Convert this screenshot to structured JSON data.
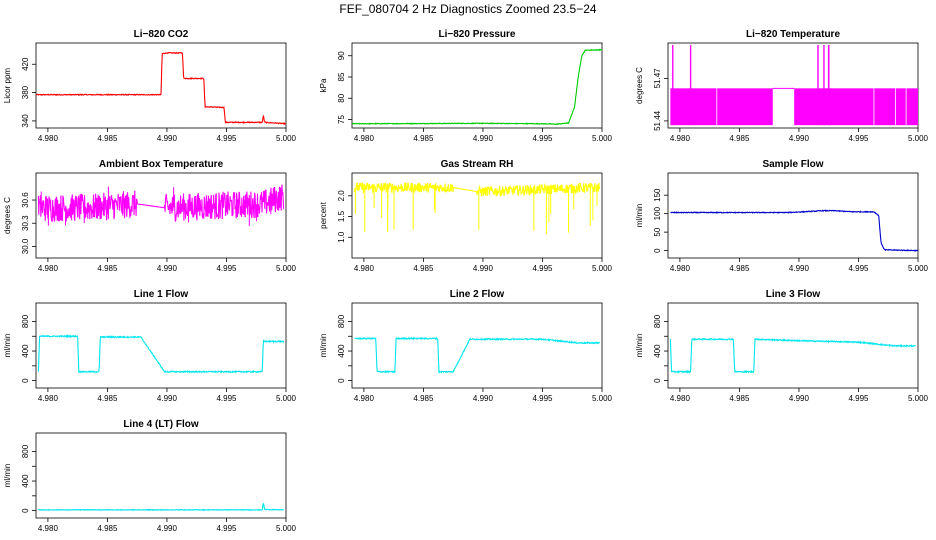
{
  "figure_title": "FEF_080704  2 Hz Diagnostics Zoomed 23.5−24",
  "chart_data": [
    {
      "type": "line",
      "title": "Li−820 CO2",
      "xlabel": "",
      "ylabel": "Licor ppm",
      "color": "#ff0000",
      "xlim": [
        4.979,
        5.0
      ],
      "ylim": [
        330,
        450
      ],
      "yticks": [
        340,
        380,
        420
      ],
      "ytick_labels": [
        "340",
        "380",
        "420"
      ],
      "xticks": [
        4.98,
        4.985,
        4.99,
        4.995,
        5.0
      ],
      "xtick_labels": [
        "4.980",
        "4.985",
        "4.990",
        "4.995",
        "5.000"
      ],
      "series": [
        {
          "name": "CO2",
          "x": [
            4.979,
            4.9895,
            4.9896,
            4.99,
            4.9913,
            4.9914,
            4.9931,
            4.9932,
            4.9948,
            4.9949,
            4.998,
            4.9981,
            4.9982,
            5.0
          ],
          "y": [
            377,
            377,
            435,
            436,
            436,
            400,
            400,
            360,
            359,
            338,
            338,
            348,
            338,
            336
          ]
        }
      ]
    },
    {
      "type": "line",
      "title": "Li−820 Pressure",
      "xlabel": "",
      "ylabel": "kPa",
      "color": "#00cc00",
      "xlim": [
        4.979,
        5.0
      ],
      "ylim": [
        73,
        93
      ],
      "yticks": [
        75,
        80,
        85,
        90
      ],
      "ytick_labels": [
        "75",
        "80",
        "85",
        "90"
      ],
      "xticks": [
        4.98,
        4.985,
        4.99,
        4.995,
        5.0
      ],
      "xtick_labels": [
        "4.980",
        "4.985",
        "4.990",
        "4.995",
        "5.000"
      ],
      "series": [
        {
          "name": "Pressure",
          "x": [
            4.979,
            4.99,
            4.995,
            4.9962,
            4.9972,
            4.9977,
            4.998,
            4.9983,
            4.9986,
            5.0
          ],
          "y": [
            74.0,
            74.1,
            74.0,
            73.9,
            74.2,
            78.0,
            85.0,
            90.0,
            91.3,
            91.4
          ]
        }
      ]
    },
    {
      "type": "line",
      "title": "Li−820 Temperature",
      "xlabel": "",
      "ylabel": "degrees C",
      "color": "#ff00ff",
      "xlim": [
        4.979,
        5.0
      ],
      "ylim": [
        51.435,
        51.495
      ],
      "yticks": [
        51.44,
        51.47
      ],
      "ytick_labels": [
        "51.44",
        "51.47"
      ],
      "xticks": [
        4.98,
        4.985,
        4.99,
        4.995,
        5.0
      ],
      "xtick_labels": [
        "4.980",
        "4.985",
        "4.990",
        "4.995",
        "5.000"
      ],
      "series": [
        {
          "name": "Temperature",
          "x": [
            4.979,
            4.988,
            4.9895,
            5.0
          ],
          "y": [
            51.44,
            51.44,
            51.455,
            51.44
          ]
        }
      ]
    },
    {
      "type": "line",
      "title": "Ambient Box Temperature",
      "xlabel": "",
      "ylabel": "degrees C",
      "color": "#ff00ff",
      "xlim": [
        4.979,
        5.0
      ],
      "ylim": [
        29.85,
        30.95
      ],
      "yticks": [
        30.0,
        30.3,
        30.6
      ],
      "ytick_labels": [
        "30.0",
        "30.3",
        "30.6"
      ],
      "xticks": [
        4.98,
        4.985,
        4.99,
        4.995,
        5.0
      ],
      "xtick_labels": [
        "4.980",
        "4.985",
        "4.990",
        "4.995",
        "5.000"
      ],
      "series": [
        {
          "name": "Ambient",
          "x": [
            4.9792,
            4.9835,
            4.9875,
            4.9898,
            4.998,
            4.9998
          ],
          "y": [
            30.5,
            30.5,
            30.55,
            30.5,
            30.55,
            30.65
          ]
        }
      ]
    },
    {
      "type": "line",
      "title": "Gas Stream RH",
      "xlabel": "",
      "ylabel": "percent",
      "color": "#ffff00",
      "xlim": [
        4.979,
        5.0
      ],
      "ylim": [
        0.5,
        2.55
      ],
      "yticks": [
        1.0,
        1.5,
        2.0
      ],
      "ytick_labels": [
        "1.0",
        "1.5",
        "2.0"
      ],
      "xticks": [
        4.98,
        4.985,
        4.99,
        4.995,
        5.0
      ],
      "xtick_labels": [
        "4.980",
        "4.985",
        "4.990",
        "4.995",
        "5.000"
      ],
      "series": [
        {
          "name": "RH",
          "x": [
            4.9792,
            4.9875,
            4.9895,
            4.9998
          ],
          "y": [
            2.2,
            2.2,
            2.1,
            2.2
          ]
        }
      ]
    },
    {
      "type": "line",
      "title": "Sample Flow",
      "xlabel": "",
      "ylabel": "ml/min",
      "color": "#0000cc",
      "xlim": [
        4.979,
        5.0
      ],
      "ylim": [
        -20,
        210
      ],
      "yticks": [
        0,
        50,
        100,
        150
      ],
      "ytick_labels": [
        "0",
        "50",
        "100",
        "150"
      ],
      "xticks": [
        4.98,
        4.985,
        4.99,
        4.995,
        5.0
      ],
      "xtick_labels": [
        "4.980",
        "4.985",
        "4.990",
        "4.995",
        "5.000"
      ],
      "series": [
        {
          "name": "Sample Flow",
          "x": [
            4.9792,
            4.989,
            4.991,
            4.992,
            4.993,
            4.9945,
            4.9963,
            4.9967,
            4.9969,
            4.9972,
            5.0
          ],
          "y": [
            103,
            103,
            106,
            108,
            108,
            105,
            105,
            95,
            20,
            2,
            0
          ]
        }
      ]
    },
    {
      "type": "line",
      "title": "Line 1 Flow",
      "xlabel": "",
      "ylabel": "ml/min",
      "color": "#00e5ee",
      "xlim": [
        4.979,
        5.0
      ],
      "ylim": [
        -100,
        1050
      ],
      "yticks": [
        0,
        200,
        400,
        600,
        800
      ],
      "ytick_labels": [
        "0",
        "400",
        "800"
      ],
      "xticks": [
        4.98,
        4.985,
        4.99,
        4.995,
        5.0
      ],
      "xtick_labels": [
        "4.980",
        "4.985",
        "4.990",
        "4.995",
        "5.000"
      ],
      "series": [
        {
          "name": "Line 1",
          "x": [
            4.9792,
            4.9793,
            4.9825,
            4.9826,
            4.9843,
            4.9844,
            4.9878,
            4.9898,
            4.998,
            4.9981,
            4.9982,
            4.9998
          ],
          "y": [
            120,
            600,
            600,
            120,
            120,
            590,
            590,
            120,
            120,
            550,
            530,
            530
          ]
        }
      ]
    },
    {
      "type": "line",
      "title": "Line 2 Flow",
      "xlabel": "",
      "ylabel": "ml/min",
      "color": "#00e5ee",
      "xlim": [
        4.979,
        5.0
      ],
      "ylim": [
        -100,
        1050
      ],
      "yticks": [
        0,
        200,
        400,
        600,
        800
      ],
      "ytick_labels": [
        "0",
        "400",
        "800"
      ],
      "xticks": [
        4.98,
        4.985,
        4.99,
        4.995,
        5.0
      ],
      "xtick_labels": [
        "4.980",
        "4.985",
        "4.990",
        "4.995",
        "5.000"
      ],
      "series": [
        {
          "name": "Line 2",
          "x": [
            4.9792,
            4.981,
            4.9811,
            4.9826,
            4.9827,
            4.9862,
            4.9863,
            4.9875,
            4.9889,
            4.99,
            4.995,
            4.998,
            4.9998
          ],
          "y": [
            570,
            570,
            120,
            120,
            570,
            570,
            120,
            120,
            560,
            560,
            560,
            510,
            510
          ]
        }
      ]
    },
    {
      "type": "line",
      "title": "Line 3 Flow",
      "xlabel": "",
      "ylabel": "ml/min",
      "color": "#00e5ee",
      "xlim": [
        4.979,
        5.0
      ],
      "ylim": [
        -100,
        1050
      ],
      "yticks": [
        0,
        200,
        400,
        600,
        800
      ],
      "ytick_labels": [
        "0",
        "400",
        "800"
      ],
      "xticks": [
        4.98,
        4.985,
        4.99,
        4.995,
        5.0
      ],
      "xtick_labels": [
        "4.980",
        "4.985",
        "4.990",
        "4.995",
        "5.000"
      ],
      "series": [
        {
          "name": "Line 3",
          "x": [
            4.9792,
            4.9793,
            4.9809,
            4.981,
            4.9845,
            4.9846,
            4.9862,
            4.9863,
            4.99,
            4.995,
            4.998,
            4.9998
          ],
          "y": [
            560,
            120,
            120,
            560,
            560,
            120,
            120,
            560,
            540,
            520,
            470,
            470
          ]
        }
      ]
    },
    {
      "type": "line",
      "title": "Line 4 (LT) Flow",
      "xlabel": "",
      "ylabel": "ml/min",
      "color": "#00e5ee",
      "xlim": [
        4.979,
        5.0
      ],
      "ylim": [
        -100,
        1050
      ],
      "yticks": [
        0,
        200,
        400,
        600,
        800
      ],
      "ytick_labels": [
        "0",
        "400",
        "800"
      ],
      "xticks": [
        4.98,
        4.985,
        4.99,
        4.995,
        5.0
      ],
      "xtick_labels": [
        "4.980",
        "4.985",
        "4.990",
        "4.995",
        "5.000"
      ],
      "series": [
        {
          "name": "Line 4",
          "x": [
            4.9792,
            4.998,
            4.9981,
            4.9982,
            4.9998
          ],
          "y": [
            10,
            10,
            110,
            15,
            10
          ]
        }
      ]
    }
  ]
}
